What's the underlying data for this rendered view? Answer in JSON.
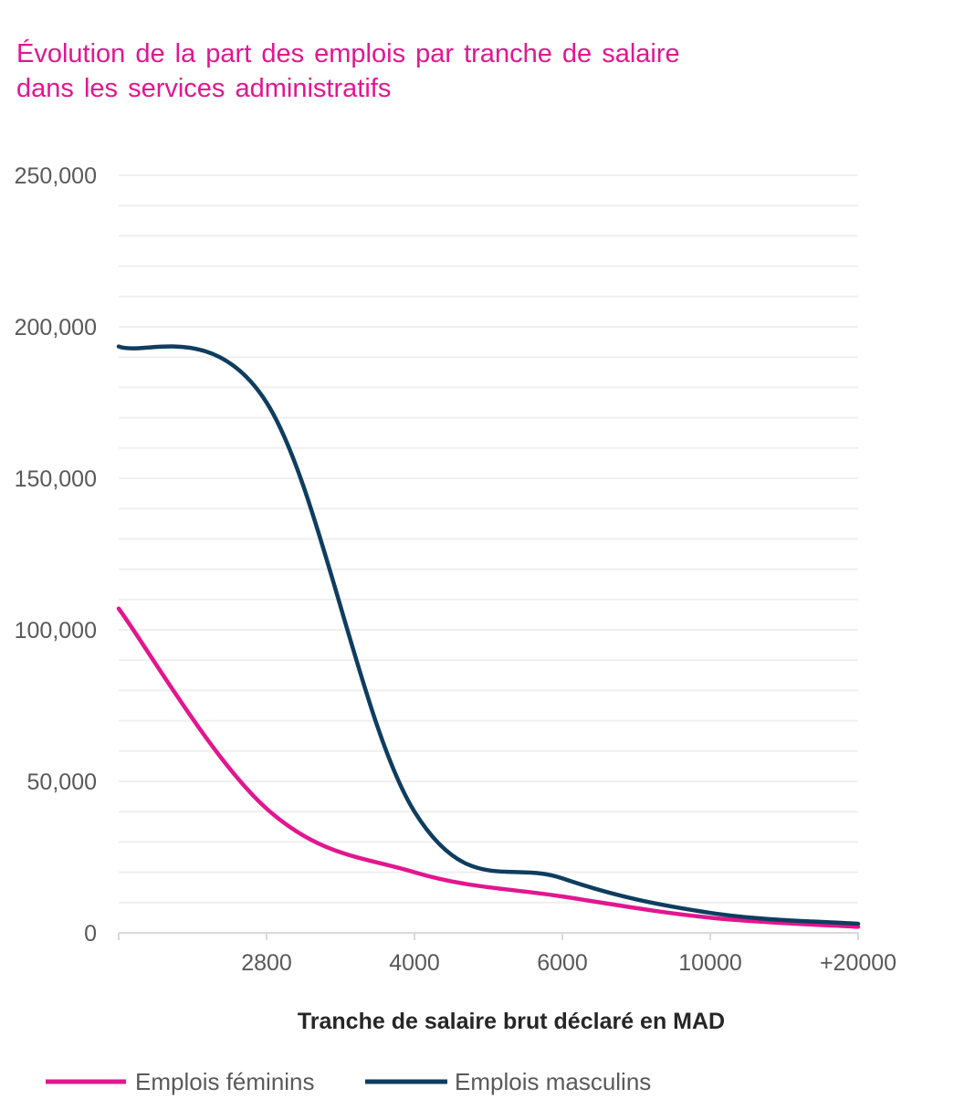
{
  "chart_data": {
    "type": "line",
    "title": "Évolution de la part des emplois par tranche de salaire dans les services administratifs",
    "title_lines": [
      "Évolution de la part des emplois par tranche de salaire",
      "dans les services administratifs"
    ],
    "xlabel": "Tranche de salaire brut déclaré en MAD",
    "ylabel": "",
    "categories": [
      "",
      "2800",
      "4000",
      "6000",
      "10000",
      "+20000"
    ],
    "ylim": [
      0,
      250000
    ],
    "yticks": [
      0,
      50000,
      100000,
      150000,
      200000,
      250000
    ],
    "ytick_labels": [
      "0",
      "50,000",
      "100,000",
      "150,000",
      "200,000",
      "250,000"
    ],
    "grid": true,
    "grid_step": 10000,
    "legend_position": "bottom-left",
    "series": [
      {
        "name": "Emplois féminins",
        "color": "#e2168f",
        "values": [
          107000,
          41000,
          20000,
          12000,
          5000,
          2000
        ]
      },
      {
        "name": "Emplois masculins",
        "color": "#0e3d5f",
        "values": [
          193500,
          175000,
          40000,
          18000,
          6600,
          3000
        ]
      }
    ]
  }
}
